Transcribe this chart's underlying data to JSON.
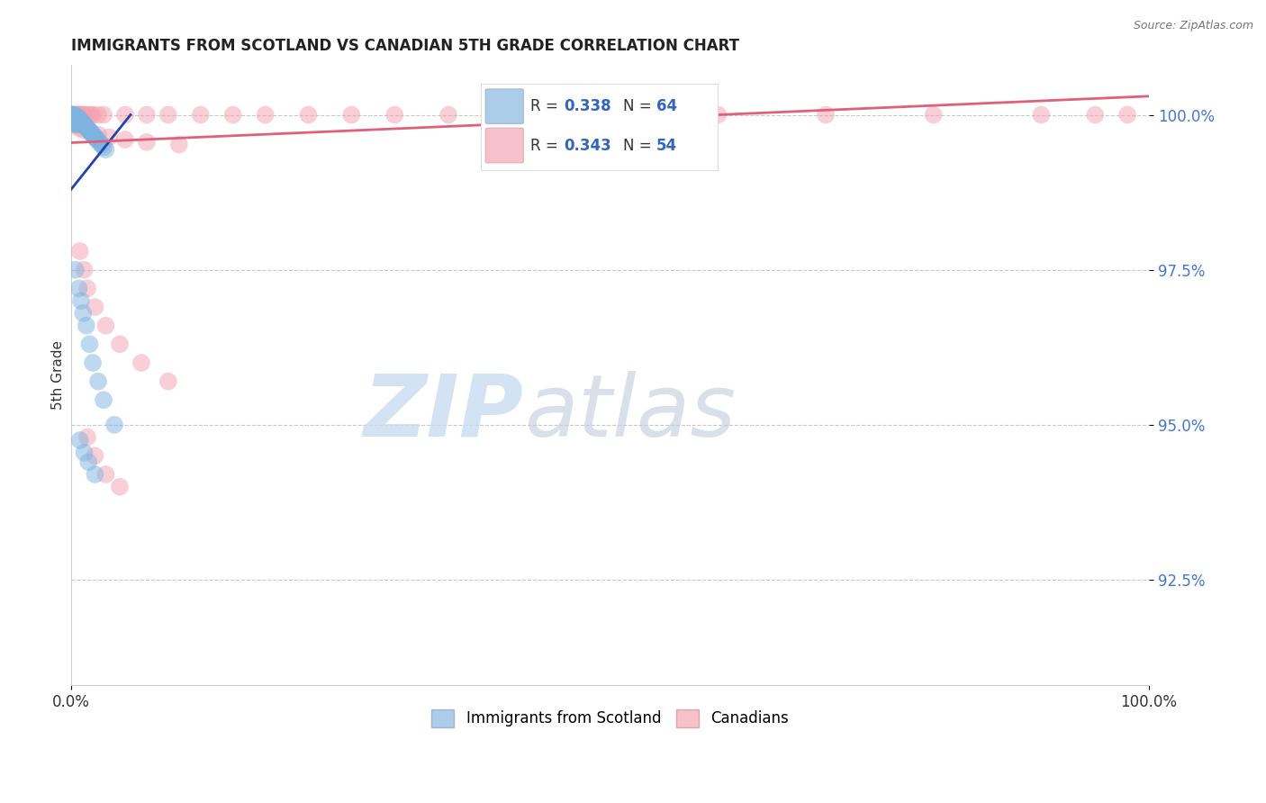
{
  "title": "IMMIGRANTS FROM SCOTLAND VS CANADIAN 5TH GRADE CORRELATION CHART",
  "source_text": "Source: ZipAtlas.com",
  "ylabel": "5th Grade",
  "xlim": [
    0.0,
    1.0
  ],
  "ylim": [
    0.908,
    1.008
  ],
  "ytick_vals": [
    0.925,
    0.95,
    0.975,
    1.0
  ],
  "ytick_labels": [
    "92.5%",
    "95.0%",
    "97.5%",
    "100.0%"
  ],
  "xtick_vals": [
    0.0,
    1.0
  ],
  "xtick_labels": [
    "0.0%",
    "100.0%"
  ],
  "blue_color": "#7EB3E0",
  "pink_color": "#F4A0B0",
  "blue_line_color": "#2244AA",
  "pink_line_color": "#E0607A",
  "ytick_color": "#4477CC",
  "watermark_zip_color": "#C8DCF0",
  "watermark_atlas_color": "#C0CCDD",
  "blue_scatter_x": [
    0.001,
    0.001,
    0.001,
    0.002,
    0.002,
    0.002,
    0.002,
    0.002,
    0.003,
    0.003,
    0.003,
    0.003,
    0.004,
    0.004,
    0.004,
    0.004,
    0.005,
    0.005,
    0.005,
    0.006,
    0.006,
    0.006,
    0.007,
    0.007,
    0.007,
    0.008,
    0.008,
    0.009,
    0.009,
    0.01,
    0.01,
    0.011,
    0.012,
    0.013,
    0.014,
    0.015,
    0.016,
    0.017,
    0.018,
    0.019,
    0.02,
    0.021,
    0.022,
    0.023,
    0.024,
    0.025,
    0.027,
    0.028,
    0.03,
    0.032,
    0.004,
    0.007,
    0.009,
    0.011,
    0.014,
    0.017,
    0.02,
    0.025,
    0.03,
    0.04,
    0.008,
    0.012,
    0.016,
    0.022
  ],
  "blue_scatter_y": [
    1.0,
    1.0,
    0.9995,
    1.0,
    0.9998,
    0.9995,
    0.999,
    0.9988,
    0.9998,
    0.9995,
    0.999,
    0.9985,
    0.9998,
    0.9995,
    0.999,
    0.9985,
    0.9997,
    0.9993,
    0.9988,
    0.9996,
    0.9992,
    0.9987,
    0.9994,
    0.999,
    0.9985,
    0.9992,
    0.9988,
    0.999,
    0.9986,
    0.9988,
    0.9984,
    0.9986,
    0.9984,
    0.9982,
    0.998,
    0.9978,
    0.9976,
    0.9974,
    0.9972,
    0.997,
    0.9968,
    0.9966,
    0.9964,
    0.9962,
    0.996,
    0.9958,
    0.9954,
    0.9952,
    0.9948,
    0.9944,
    0.975,
    0.972,
    0.97,
    0.968,
    0.966,
    0.963,
    0.96,
    0.957,
    0.954,
    0.95,
    0.9475,
    0.9455,
    0.944,
    0.942
  ],
  "pink_scatter_x": [
    0.001,
    0.002,
    0.003,
    0.004,
    0.005,
    0.006,
    0.007,
    0.008,
    0.009,
    0.01,
    0.012,
    0.015,
    0.018,
    0.02,
    0.025,
    0.03,
    0.05,
    0.07,
    0.09,
    0.12,
    0.15,
    0.18,
    0.22,
    0.26,
    0.3,
    0.35,
    0.4,
    0.5,
    0.6,
    0.7,
    0.8,
    0.9,
    0.95,
    0.98,
    0.003,
    0.005,
    0.008,
    0.012,
    0.018,
    0.025,
    0.035,
    0.05,
    0.07,
    0.1,
    0.008,
    0.012,
    0.015,
    0.022,
    0.032,
    0.045,
    0.065,
    0.09,
    0.015,
    0.022,
    0.032,
    0.045
  ],
  "pink_scatter_y": [
    1.0,
    1.0,
    1.0,
    1.0,
    1.0,
    1.0,
    1.0,
    1.0,
    1.0,
    1.0,
    1.0,
    1.0,
    1.0,
    1.0,
    1.0,
    1.0,
    1.0,
    1.0,
    1.0,
    1.0,
    1.0,
    1.0,
    1.0,
    1.0,
    1.0,
    1.0,
    1.0,
    1.0,
    1.0,
    1.0,
    1.0,
    1.0,
    1.0,
    1.0,
    0.9985,
    0.9982,
    0.9978,
    0.9975,
    0.9972,
    0.9968,
    0.9964,
    0.996,
    0.9956,
    0.9952,
    0.978,
    0.975,
    0.972,
    0.969,
    0.966,
    0.963,
    0.96,
    0.957,
    0.948,
    0.945,
    0.942,
    0.94
  ],
  "blue_line_x_start": 0.0,
  "blue_line_x_end": 0.055,
  "blue_line_y_start": 0.988,
  "blue_line_y_end": 1.0,
  "pink_line_x_start": 0.0,
  "pink_line_x_end": 1.0,
  "pink_line_y_start": 0.9955,
  "pink_line_y_end": 1.003
}
